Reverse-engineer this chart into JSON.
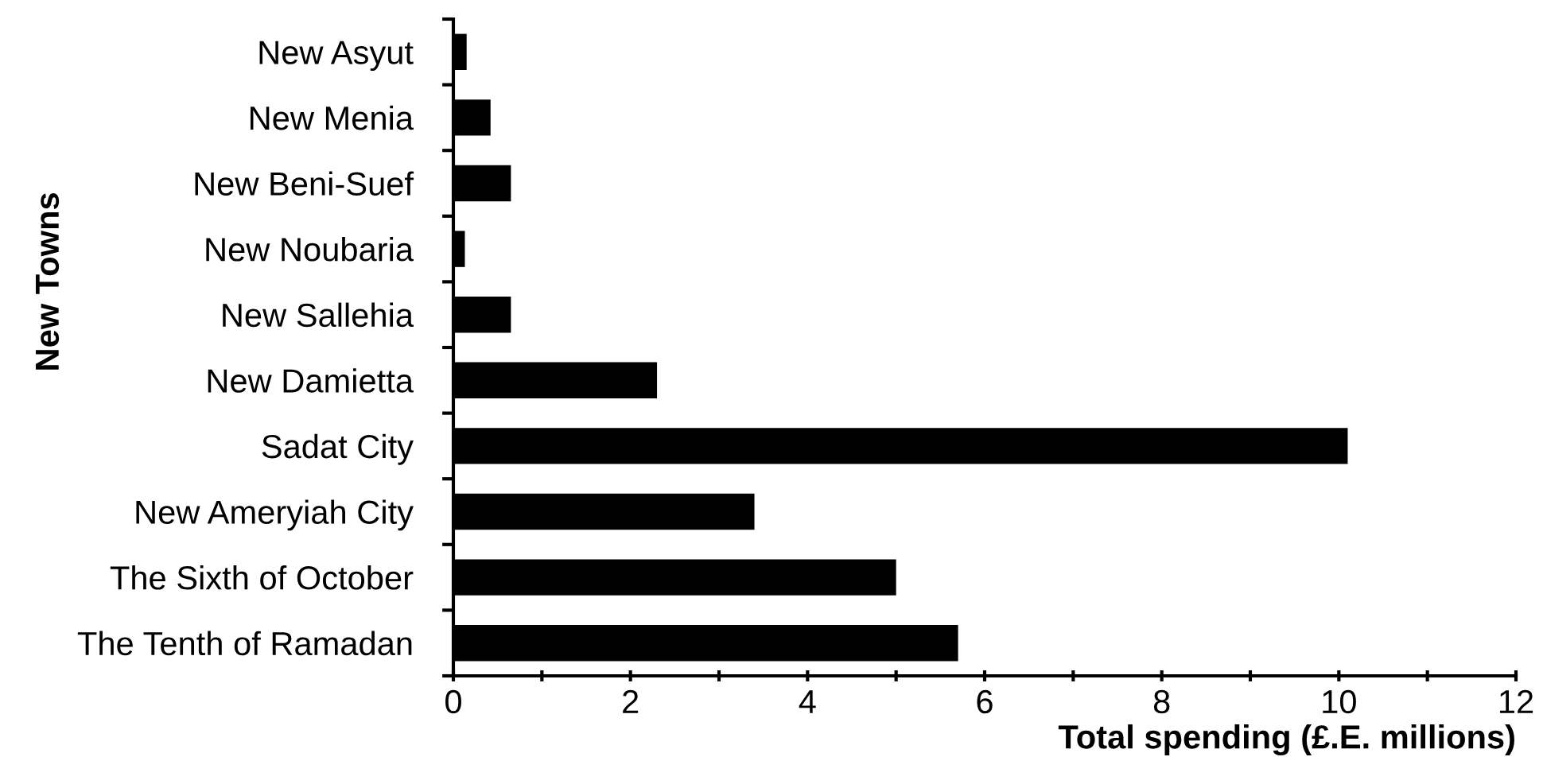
{
  "chart_data": {
    "type": "bar",
    "orientation": "horizontal",
    "xlabel": "Total spending (£.E. millions)",
    "ylabel": "New Towns",
    "categories": [
      "New Asyut",
      "New Menia",
      "New Beni-Suef",
      "New Noubaria",
      "New Sallehia",
      "New Damietta",
      "Sadat City",
      "New Ameryiah City",
      "The Sixth of October",
      "The Tenth of Ramadan"
    ],
    "values": [
      0.15,
      0.42,
      0.65,
      0.13,
      0.65,
      2.3,
      10.1,
      3.4,
      5.0,
      5.7
    ],
    "color": "#000000",
    "xlim": [
      0,
      12
    ],
    "xticks": [
      0,
      {
        "value": 1,
        "label": null
      },
      2,
      {
        "value": 3,
        "label": null
      },
      4,
      {
        "value": 5,
        "label": null
      },
      6,
      {
        "value": 7,
        "label": null
      },
      8,
      {
        "value": 9,
        "label": null
      },
      10,
      {
        "value": 11,
        "label": null
      },
      12
    ],
    "grid": false
  }
}
